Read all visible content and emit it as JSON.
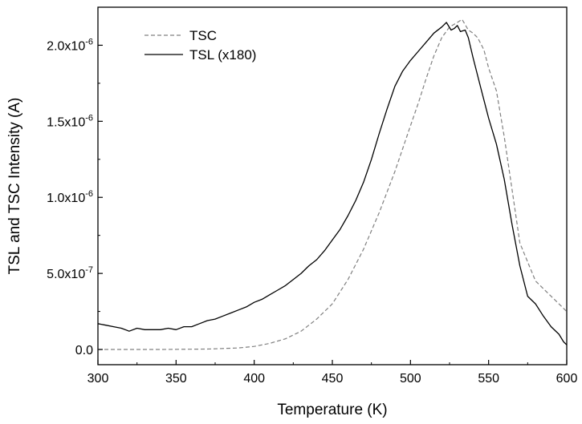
{
  "chart_data": {
    "type": "line",
    "xlabel": "Temperature (K)",
    "ylabel": "TSL and TSC Intensity (A)",
    "xlim": [
      300,
      600
    ],
    "ylim": [
      -1e-07,
      2.25e-06
    ],
    "grid": false,
    "legend_position": "top-left",
    "x_ticks": [
      {
        "value": 300,
        "label": "300"
      },
      {
        "value": 350,
        "label": "350"
      },
      {
        "value": 400,
        "label": "400"
      },
      {
        "value": 450,
        "label": "450"
      },
      {
        "value": 500,
        "label": "500"
      },
      {
        "value": 550,
        "label": "550"
      },
      {
        "value": 600,
        "label": "600"
      }
    ],
    "y_ticks": [
      {
        "value": 0,
        "label": "0.0",
        "exp": ""
      },
      {
        "value": 5e-07,
        "label": "5.0x10",
        "exp": "-7"
      },
      {
        "value": 1e-06,
        "label": "1.0x10",
        "exp": "-6"
      },
      {
        "value": 1.5e-06,
        "label": "1.5x10",
        "exp": "-6"
      },
      {
        "value": 2e-06,
        "label": "2.0x10",
        "exp": "-6"
      }
    ],
    "series": [
      {
        "name": "TSC",
        "style": "dashed",
        "color": "#808080",
        "x": [
          300,
          340,
          370,
          390,
          400,
          410,
          420,
          430,
          440,
          450,
          460,
          470,
          480,
          490,
          500,
          505,
          510,
          515,
          520,
          525,
          530,
          533,
          537,
          540,
          543,
          547,
          550,
          555,
          560,
          565,
          570,
          580,
          590,
          600
        ],
        "y": [
          0,
          0,
          3e-09,
          1e-08,
          2e-08,
          4e-08,
          7e-08,
          1.2e-07,
          2e-07,
          3e-07,
          4.6e-07,
          6.6e-07,
          9e-07,
          1.17e-06,
          1.47e-06,
          1.62e-06,
          1.78e-06,
          1.93e-06,
          2.05e-06,
          2.12e-06,
          2.15e-06,
          2.17e-06,
          2.1e-06,
          2.08e-06,
          2.05e-06,
          1.97e-06,
          1.85e-06,
          1.7e-06,
          1.4e-06,
          1.05e-06,
          7e-07,
          4.5e-07,
          3.5e-07,
          2.5e-07
        ]
      },
      {
        "name": "TSL (x180)",
        "style": "solid",
        "color": "#000000",
        "x": [
          300,
          305,
          310,
          315,
          320,
          325,
          330,
          335,
          340,
          345,
          350,
          355,
          360,
          365,
          370,
          375,
          380,
          385,
          390,
          395,
          400,
          405,
          410,
          415,
          420,
          425,
          430,
          435,
          440,
          445,
          450,
          455,
          460,
          465,
          470,
          475,
          480,
          485,
          490,
          495,
          500,
          505,
          510,
          515,
          520,
          523,
          526,
          528,
          530,
          532,
          535,
          537,
          540,
          545,
          550,
          555,
          560,
          565,
          570,
          575,
          580,
          585,
          590,
          595,
          598,
          600
        ],
        "y": [
          1.7e-07,
          1.6e-07,
          1.5e-07,
          1.4e-07,
          1.2e-07,
          1.4e-07,
          1.3e-07,
          1.3e-07,
          1.3e-07,
          1.4e-07,
          1.3e-07,
          1.5e-07,
          1.5e-07,
          1.7e-07,
          1.9e-07,
          2e-07,
          2.2e-07,
          2.4e-07,
          2.6e-07,
          2.8e-07,
          3.1e-07,
          3.3e-07,
          3.6e-07,
          3.9e-07,
          4.2e-07,
          4.6e-07,
          5e-07,
          5.5e-07,
          5.9e-07,
          6.5e-07,
          7.2e-07,
          7.9e-07,
          8.8e-07,
          9.8e-07,
          1.1e-06,
          1.25e-06,
          1.42e-06,
          1.58e-06,
          1.73e-06,
          1.83e-06,
          1.9e-06,
          1.96e-06,
          2.02e-06,
          2.08e-06,
          2.12e-06,
          2.15e-06,
          2.1e-06,
          2.11e-06,
          2.13e-06,
          2.09e-06,
          2.1e-06,
          2.05e-06,
          1.92e-06,
          1.72e-06,
          1.52e-06,
          1.35e-06,
          1.12e-06,
          8.2e-07,
          5.5e-07,
          3.5e-07,
          3e-07,
          2.2e-07,
          1.5e-07,
          1e-07,
          5e-08,
          3e-08
        ]
      }
    ]
  }
}
